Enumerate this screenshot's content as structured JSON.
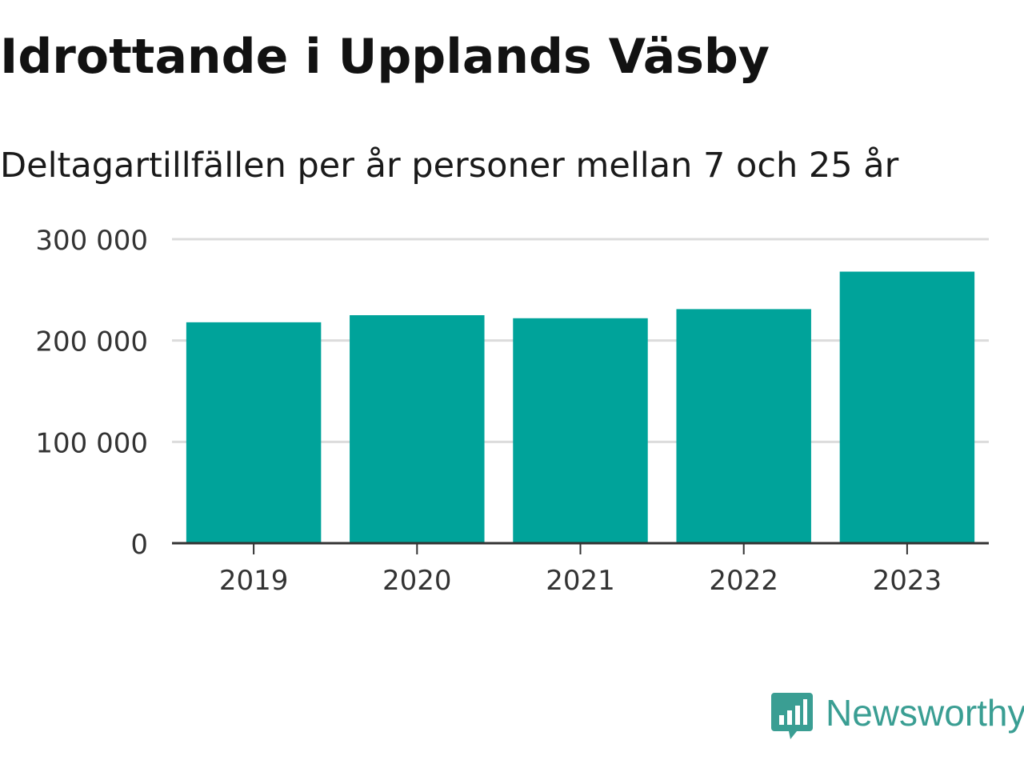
{
  "title": "Idrottande i Upplands Väsby",
  "subtitle": "Deltagartillfällen per år personer mellan 7 och 25 år",
  "brand": {
    "name": "Newsworthy",
    "color": "#3a9e93",
    "icon": "newsworthy-logo-icon"
  },
  "chart_data": {
    "type": "bar",
    "title": "Idrottande i Upplands Väsby",
    "subtitle": "Deltagartillfällen per år personer mellan 7 och 25 år",
    "categories": [
      "2019",
      "2020",
      "2021",
      "2022",
      "2023"
    ],
    "values": [
      218000,
      225000,
      222000,
      231000,
      268000
    ],
    "ylim": [
      0,
      300000
    ],
    "yticks": [
      0,
      100000,
      200000,
      300000
    ],
    "ytick_labels": [
      "0",
      "100 000",
      "200 000",
      "300 000"
    ],
    "xlabel": "",
    "ylabel": "",
    "grid": true,
    "bar_color": "#00a39a"
  }
}
